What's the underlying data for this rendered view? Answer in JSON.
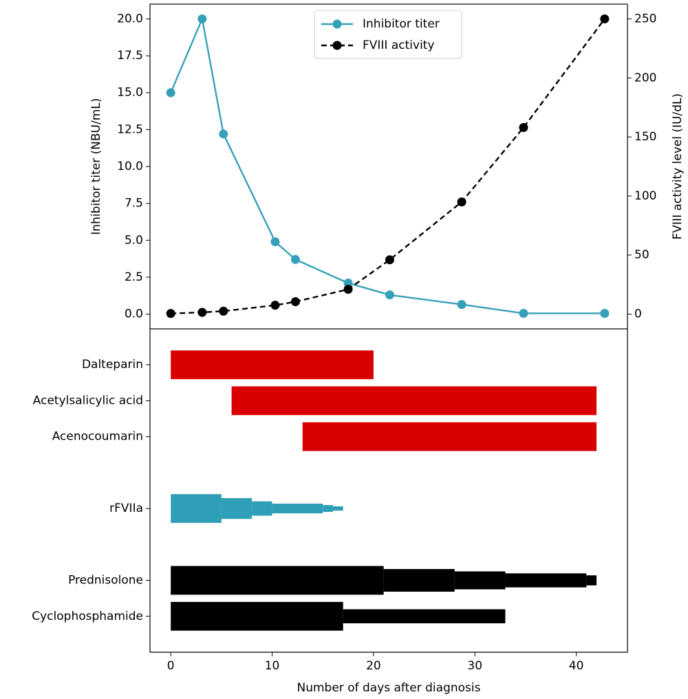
{
  "chart_data": [
    {
      "type": "line",
      "xlim": [
        -2.05,
        45.05
      ],
      "ylabel": "Inhibitor titer (NBU/mL)",
      "y2label": "FVIII activity level (IU/dL)",
      "ylim": [
        -1,
        21
      ],
      "yticks": [
        {
          "value": 0,
          "label": "0.0"
        },
        {
          "value": 2.5,
          "label": "2.5"
        },
        {
          "value": 5,
          "label": "5.0"
        },
        {
          "value": 7.5,
          "label": "7.5"
        },
        {
          "value": 10,
          "label": "10.0"
        },
        {
          "value": 12.5,
          "label": "12.5"
        },
        {
          "value": 15,
          "label": "15.0"
        },
        {
          "value": 17.5,
          "label": "17.5"
        },
        {
          "value": 20,
          "label": "20.0"
        }
      ],
      "y2lim": [
        -12.5,
        262.5
      ],
      "y2ticks": [
        0,
        50,
        100,
        150,
        200,
        250
      ],
      "legend": "upper center",
      "series": [
        {
          "name": "Inhibitor titer",
          "color": "#35a0b8",
          "dash": false,
          "x": [
            0,
            3.1,
            5.2,
            10.3,
            12.3,
            17.5,
            21.6,
            28.7,
            34.8,
            42.8
          ],
          "values": [
            15,
            20,
            12.2,
            4.9,
            3.7,
            2.1,
            1.3,
            0.65,
            0.05,
            0.05
          ]
        },
        {
          "name": "FVIII activity",
          "color": "#000000",
          "dash": true,
          "axis": "y2",
          "x": [
            0,
            3.1,
            5.2,
            10.3,
            12.3,
            17.5,
            21.6,
            28.7,
            34.8,
            42.8
          ],
          "values": [
            0.5,
            1.5,
            2.5,
            7.5,
            10.5,
            21,
            46,
            95,
            158,
            250
          ]
        }
      ]
    },
    {
      "type": "gantt",
      "xlim": [
        -2.05,
        45.05
      ],
      "xticks": [
        0,
        10,
        20,
        30,
        40
      ],
      "xlabel": "Number of days after diagnosis",
      "categories": [
        "Dalteparin",
        "Acetylsalicylic acid",
        "Acenocoumarin",
        null,
        "rFVIIa",
        null,
        "Prednisolone",
        "Cyclophosphamide"
      ],
      "bars": [
        {
          "color": "#d90000",
          "segments": [
            {
              "start": 0,
              "end": 20,
              "width": 0.8
            }
          ]
        },
        {
          "color": "#d90000",
          "segments": [
            {
              "start": 6,
              "end": 42,
              "width": 0.8
            }
          ]
        },
        {
          "color": "#d90000",
          "segments": [
            {
              "start": 13,
              "end": 42,
              "width": 0.8
            }
          ]
        },
        null,
        {
          "color": "#2e9fb7",
          "segments": [
            {
              "start": 0,
              "end": 5,
              "width": 0.8
            },
            {
              "start": 5,
              "end": 8,
              "width": 0.58
            },
            {
              "start": 8,
              "end": 10,
              "width": 0.4
            },
            {
              "start": 10,
              "end": 15,
              "width": 0.27
            },
            {
              "start": 15,
              "end": 16,
              "width": 0.19
            },
            {
              "start": 16,
              "end": 17,
              "width": 0.12
            }
          ]
        },
        null,
        {
          "color": "#000000",
          "segments": [
            {
              "start": 0,
              "end": 21,
              "width": 0.8
            },
            {
              "start": 21,
              "end": 28,
              "width": 0.63
            },
            {
              "start": 28,
              "end": 33,
              "width": 0.5
            },
            {
              "start": 33,
              "end": 41,
              "width": 0.39
            },
            {
              "start": 41,
              "end": 42,
              "width": 0.28
            }
          ]
        },
        {
          "color": "#000000",
          "segments": [
            {
              "start": 0,
              "end": 17,
              "width": 0.8
            },
            {
              "start": 17,
              "end": 33,
              "width": 0.39
            }
          ]
        }
      ]
    }
  ]
}
